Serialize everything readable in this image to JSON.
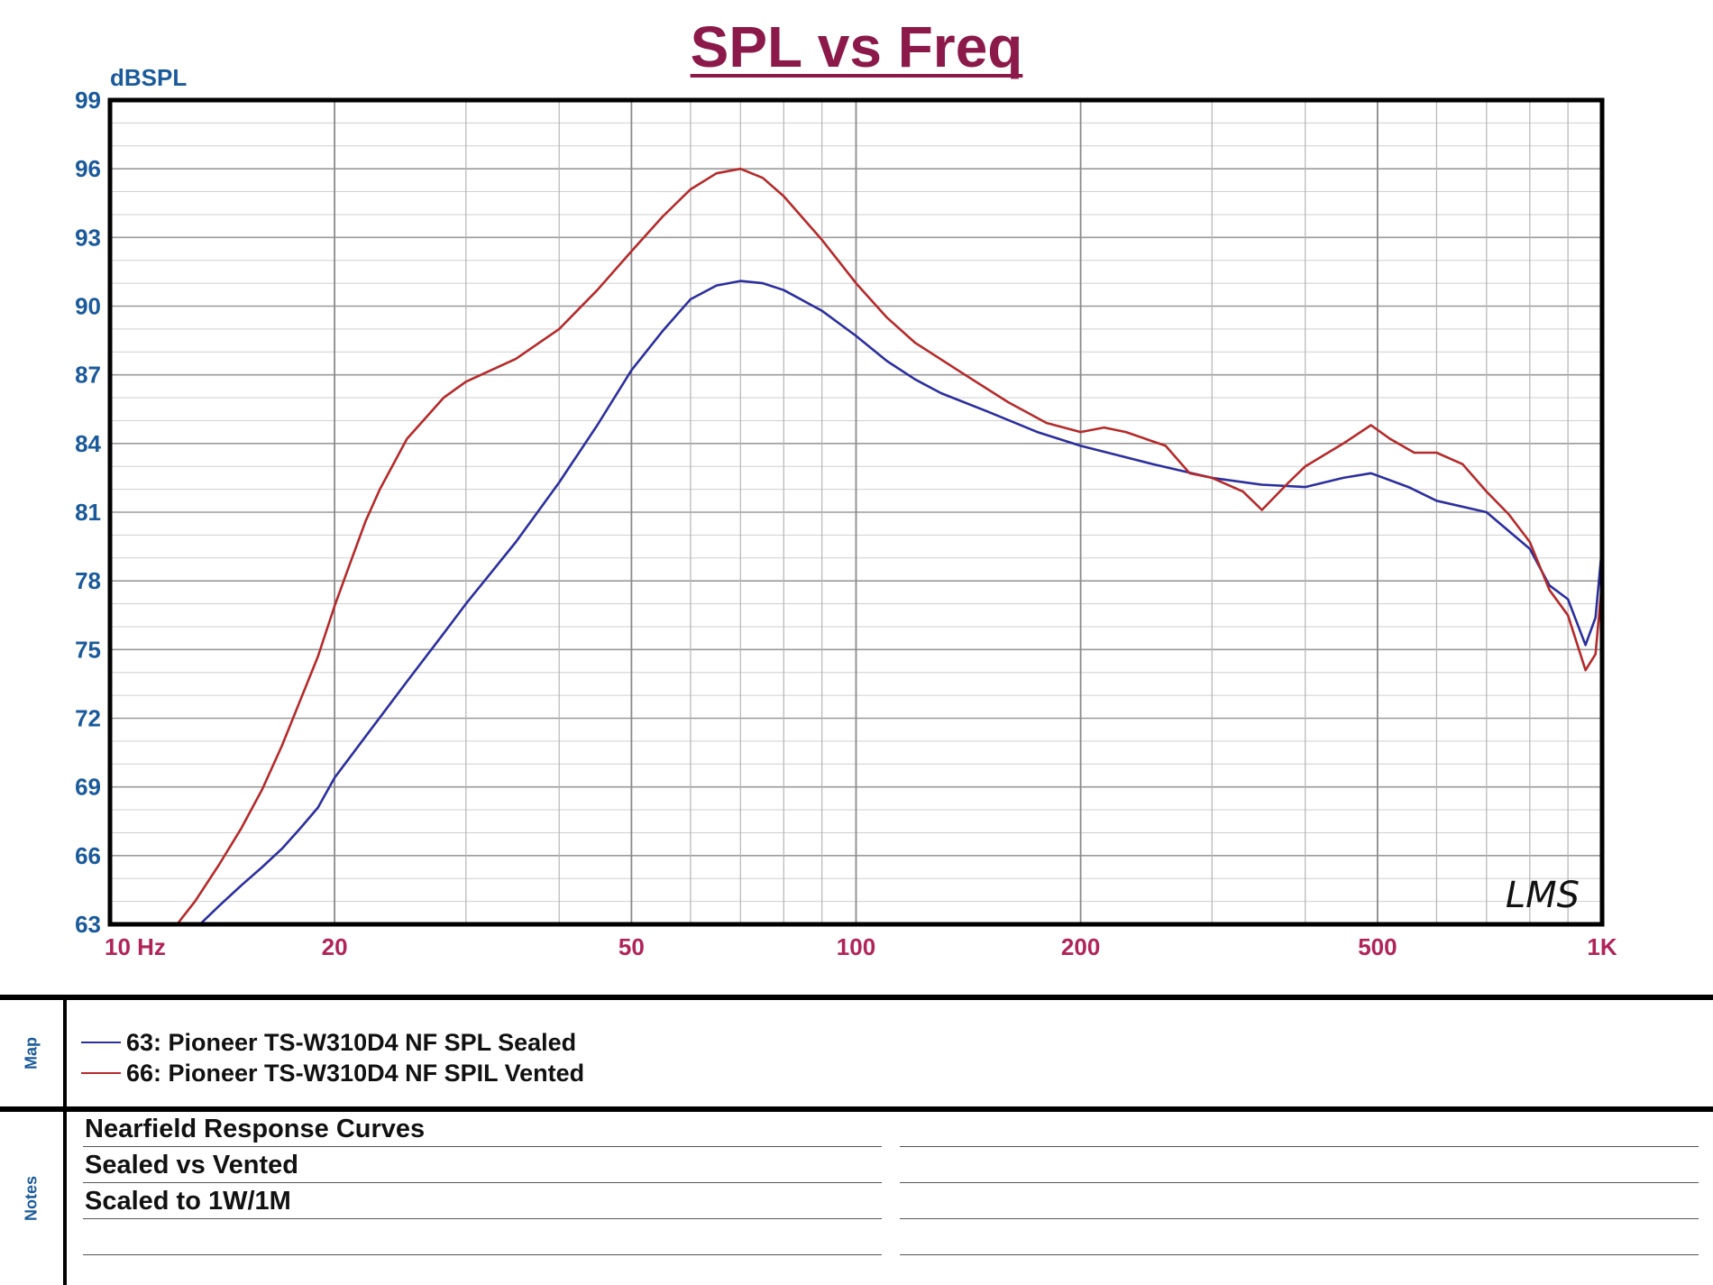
{
  "chart_data": {
    "type": "line",
    "title": "SPL vs Freq",
    "ylabel": "dBSPL",
    "xscale": "log",
    "xlim": [
      10,
      1000
    ],
    "ylim": [
      63,
      99
    ],
    "grid": true,
    "yticks": [
      99,
      96,
      93,
      90,
      87,
      84,
      81,
      78,
      75,
      72,
      69,
      66,
      63
    ],
    "xticks": [
      {
        "value": 10,
        "label": "10 Hz"
      },
      {
        "value": 20,
        "label": "20"
      },
      {
        "value": 50,
        "label": "50"
      },
      {
        "value": 100,
        "label": "100"
      },
      {
        "value": 200,
        "label": "200"
      },
      {
        "value": 500,
        "label": "500"
      },
      {
        "value": 1000,
        "label": "1K"
      }
    ],
    "series": [
      {
        "name": "63: Pioneer TS-W310D4 NF SPL Sealed",
        "color": "#2b2f9e",
        "points": [
          [
            13.2,
            63
          ],
          [
            14,
            63.8
          ],
          [
            15,
            64.7
          ],
          [
            16,
            65.5
          ],
          [
            17,
            66.3
          ],
          [
            18,
            67.2
          ],
          [
            19,
            68.1
          ],
          [
            20,
            69.4
          ],
          [
            22,
            71.2
          ],
          [
            25,
            73.6
          ],
          [
            28,
            75.7
          ],
          [
            30,
            77
          ],
          [
            35,
            79.7
          ],
          [
            40,
            82.3
          ],
          [
            45,
            84.8
          ],
          [
            50,
            87.2
          ],
          [
            55,
            88.9
          ],
          [
            60,
            90.3
          ],
          [
            65,
            90.9
          ],
          [
            70,
            91.1
          ],
          [
            75,
            91
          ],
          [
            80,
            90.7
          ],
          [
            90,
            89.8
          ],
          [
            100,
            88.7
          ],
          [
            110,
            87.6
          ],
          [
            120,
            86.8
          ],
          [
            130,
            86.2
          ],
          [
            150,
            85.4
          ],
          [
            175,
            84.5
          ],
          [
            200,
            83.9
          ],
          [
            250,
            83.1
          ],
          [
            300,
            82.5
          ],
          [
            350,
            82.2
          ],
          [
            400,
            82.1
          ],
          [
            450,
            82.5
          ],
          [
            490,
            82.7
          ],
          [
            550,
            82.1
          ],
          [
            600,
            81.5
          ],
          [
            700,
            81
          ],
          [
            800,
            79.4
          ],
          [
            850,
            77.8
          ],
          [
            900,
            77.2
          ],
          [
            950,
            75.2
          ],
          [
            980,
            76.4
          ],
          [
            1000,
            79.5
          ]
        ]
      },
      {
        "name": "66: Pioneer TS-W310D4 NF SPIL Vented",
        "color": "#b52a2a",
        "points": [
          [
            12.3,
            63
          ],
          [
            13,
            64
          ],
          [
            14,
            65.6
          ],
          [
            15,
            67.2
          ],
          [
            16,
            68.9
          ],
          [
            17,
            70.8
          ],
          [
            18,
            72.8
          ],
          [
            19,
            74.7
          ],
          [
            20,
            76.9
          ],
          [
            21,
            78.8
          ],
          [
            22,
            80.6
          ],
          [
            23,
            82
          ],
          [
            25,
            84.2
          ],
          [
            28,
            86
          ],
          [
            30,
            86.7
          ],
          [
            35,
            87.7
          ],
          [
            40,
            89
          ],
          [
            45,
            90.7
          ],
          [
            50,
            92.4
          ],
          [
            55,
            93.9
          ],
          [
            60,
            95.1
          ],
          [
            65,
            95.8
          ],
          [
            70,
            96
          ],
          [
            75,
            95.6
          ],
          [
            80,
            94.8
          ],
          [
            90,
            92.9
          ],
          [
            100,
            91
          ],
          [
            110,
            89.5
          ],
          [
            120,
            88.4
          ],
          [
            140,
            87
          ],
          [
            160,
            85.8
          ],
          [
            180,
            84.9
          ],
          [
            200,
            84.5
          ],
          [
            215,
            84.7
          ],
          [
            230,
            84.5
          ],
          [
            260,
            83.9
          ],
          [
            280,
            82.7
          ],
          [
            300,
            82.5
          ],
          [
            330,
            81.9
          ],
          [
            350,
            81.1
          ],
          [
            380,
            82.3
          ],
          [
            400,
            83
          ],
          [
            450,
            84
          ],
          [
            490,
            84.8
          ],
          [
            520,
            84.2
          ],
          [
            560,
            83.6
          ],
          [
            600,
            83.6
          ],
          [
            650,
            83.1
          ],
          [
            700,
            81.9
          ],
          [
            750,
            80.9
          ],
          [
            800,
            79.7
          ],
          [
            850,
            77.6
          ],
          [
            900,
            76.5
          ],
          [
            950,
            74.1
          ],
          [
            980,
            74.8
          ],
          [
            1000,
            78
          ]
        ]
      }
    ]
  },
  "watermark": "LMS",
  "map_section": {
    "label": "Map",
    "legend": [
      {
        "label": "63: Pioneer TS-W310D4 NF SPL Sealed",
        "color": "#2b2f9e"
      },
      {
        "label": "66: Pioneer TS-W310D4 NF SPIL Vented",
        "color": "#b52a2a"
      }
    ]
  },
  "notes_section": {
    "label": "Notes",
    "lines": [
      "Nearfield Response Curves",
      "Sealed vs Vented",
      "Scaled to 1W/1M"
    ]
  }
}
